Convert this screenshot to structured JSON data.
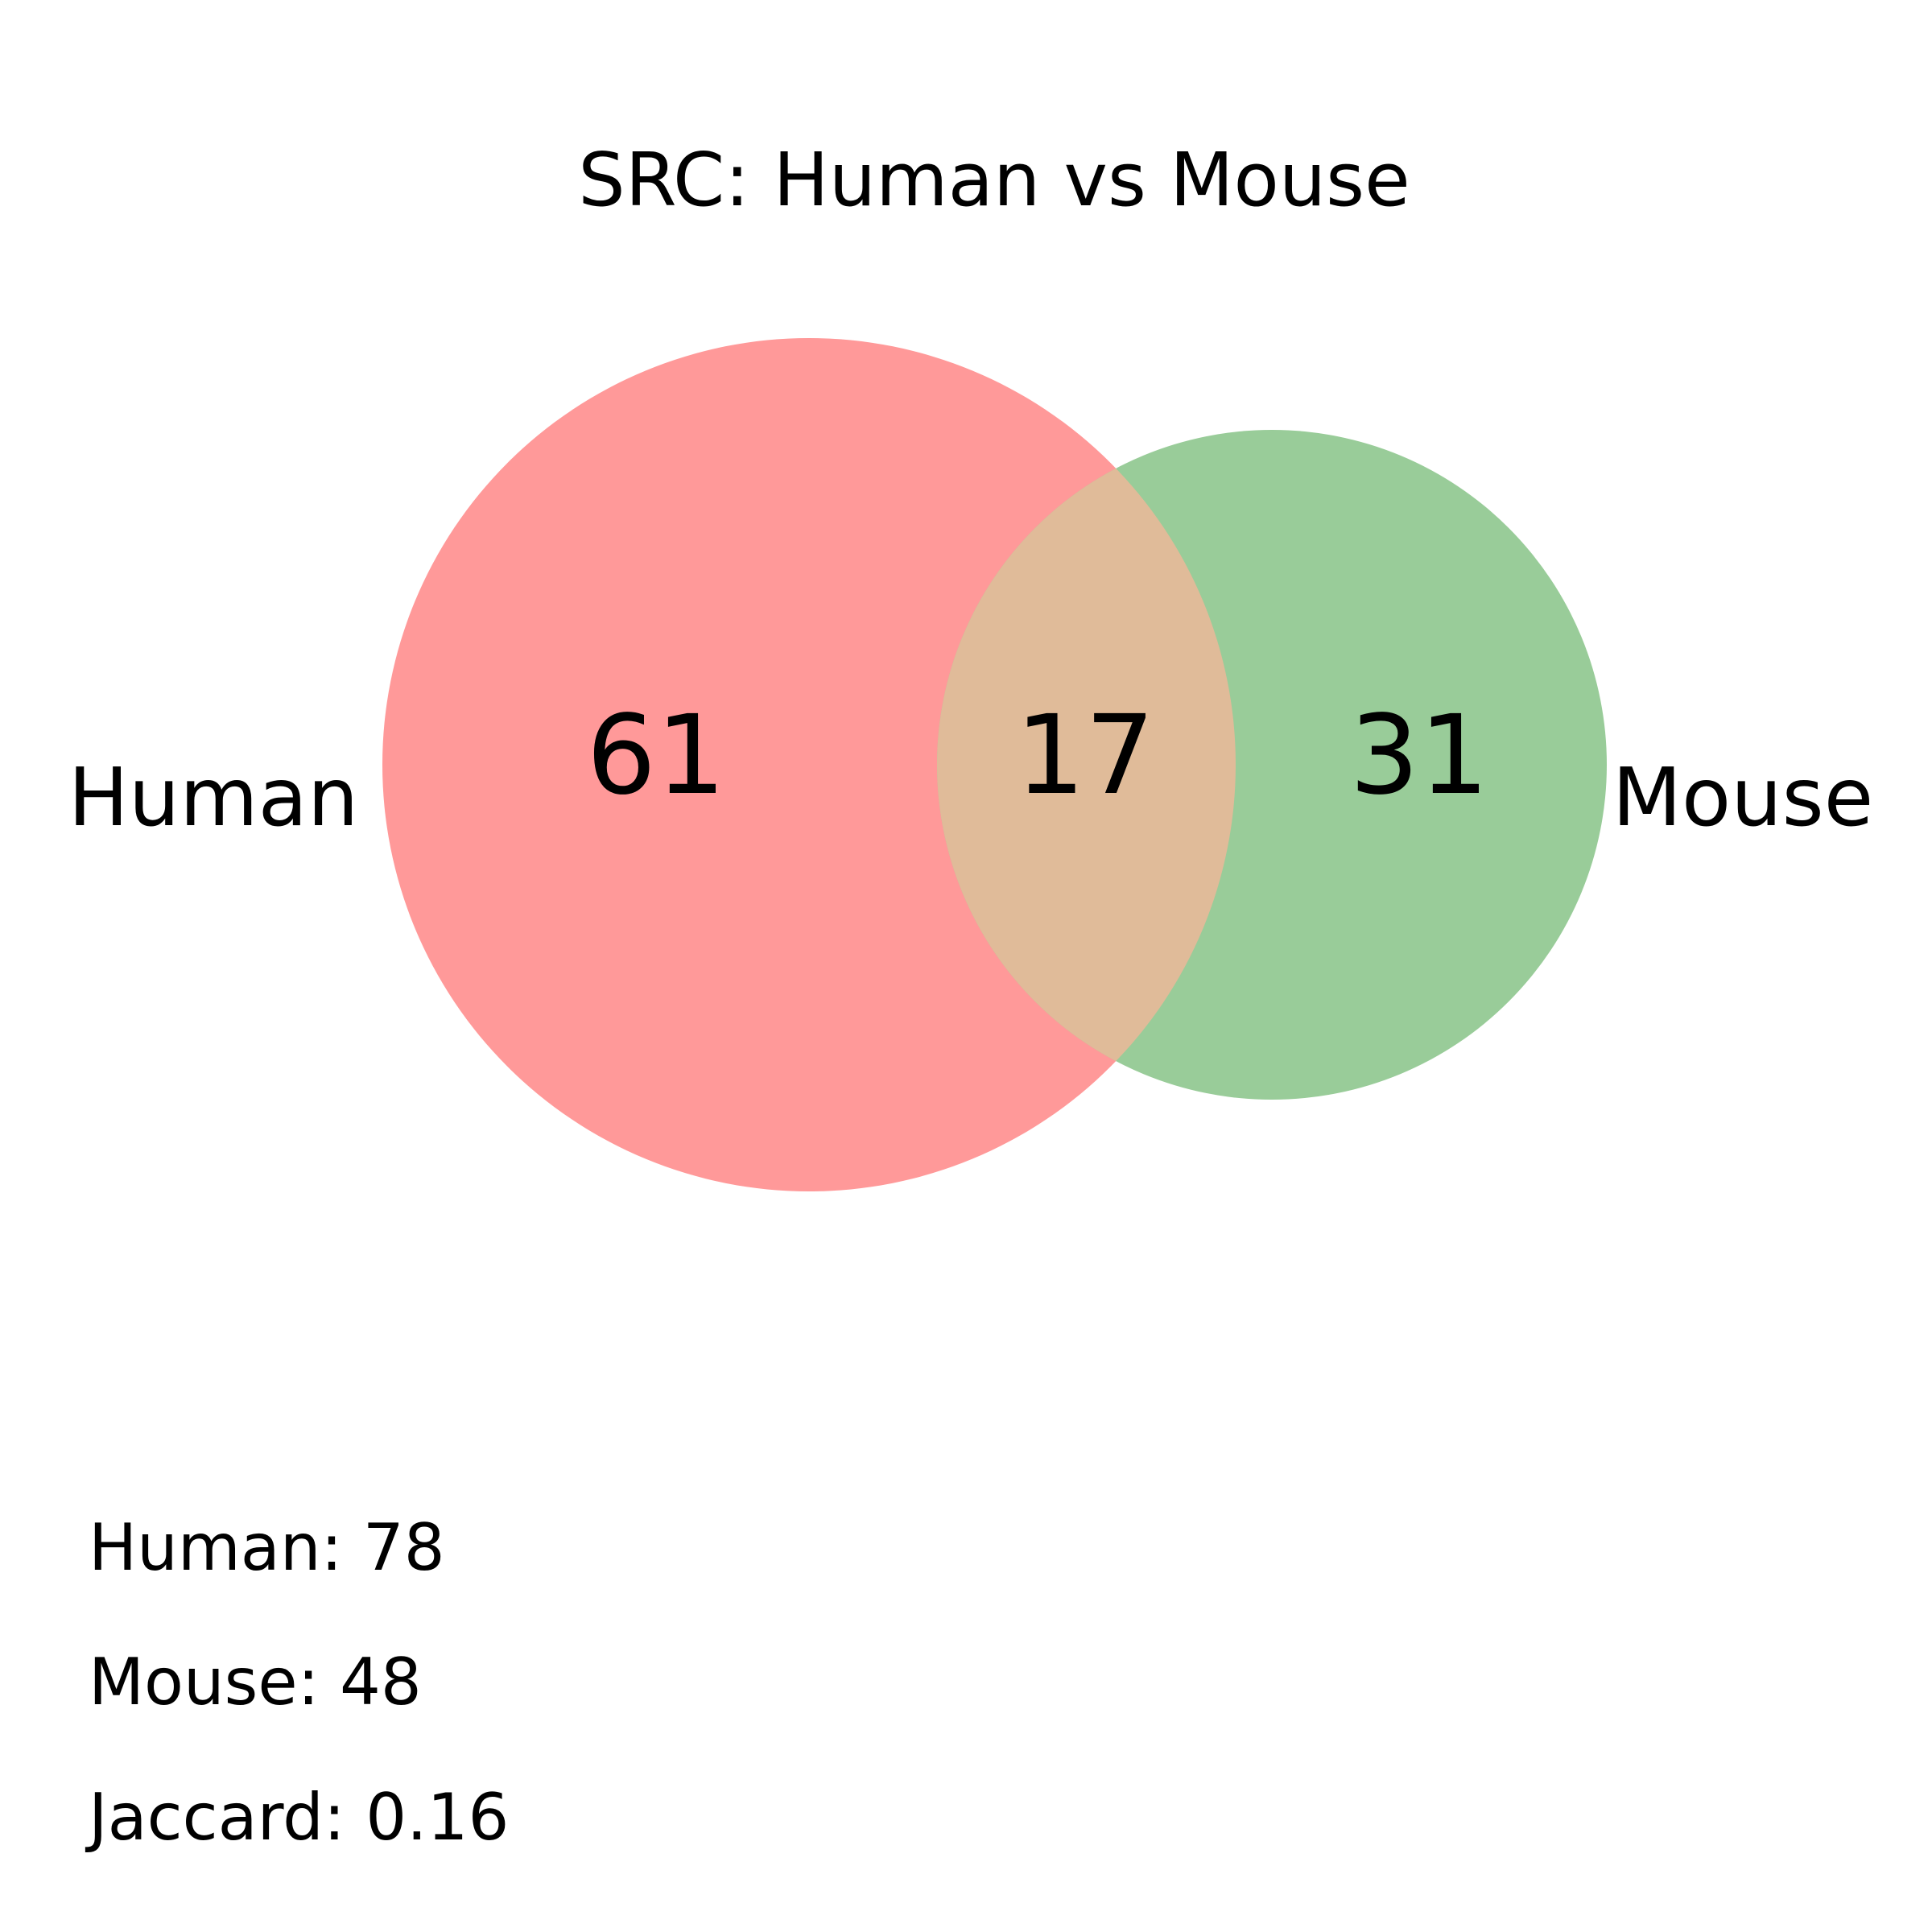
{
  "chart_data": {
    "type": "venn",
    "title": "SRC: Human vs Mouse",
    "sets": [
      {
        "name": "Human",
        "size": 78,
        "color": "#ff9999"
      },
      {
        "name": "Mouse",
        "size": 48,
        "color": "#99cc99"
      }
    ],
    "regions": {
      "human_only": "61",
      "intersection": "17",
      "mouse_only": "31"
    },
    "intersection_color": "#e0bb99",
    "stats": [
      "Human: 78",
      "Mouse: 48",
      "Jaccard: 0.16"
    ]
  }
}
